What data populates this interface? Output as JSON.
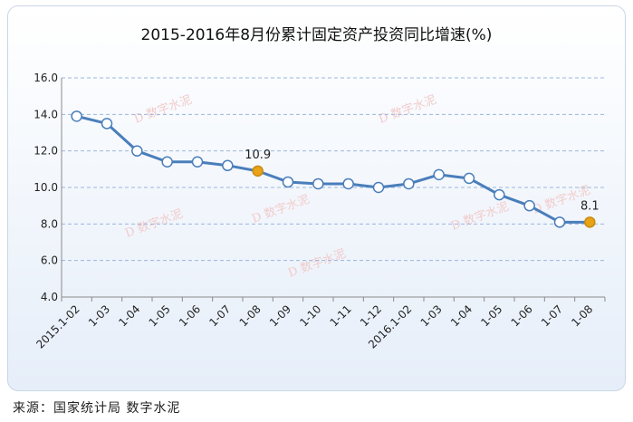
{
  "source": "来源：国家统计局 数字水泥",
  "chart_data": {
    "type": "line",
    "title": "2015-2016年8月份累计固定资产投资同比增速(%)",
    "xlabel": "",
    "ylabel": "",
    "ylim": [
      4.0,
      16.0
    ],
    "yticks": [
      "4.0",
      "6.0",
      "8.0",
      "10.0",
      "12.0",
      "14.0",
      "16.0"
    ],
    "grid": "horizontal dashed",
    "categories": [
      "2015.1-02",
      "1-03",
      "1-04",
      "1-05",
      "1-06",
      "1-07",
      "1-08",
      "1-09",
      "1-10",
      "1-11",
      "1-12",
      "2016.1-02",
      "1-03",
      "1-04",
      "1-05",
      "1-06",
      "1-07",
      "1-08"
    ],
    "series": [
      {
        "values": [
          13.9,
          13.5,
          12.0,
          11.4,
          11.4,
          11.2,
          10.9,
          10.3,
          10.2,
          10.2,
          10.0,
          10.2,
          10.7,
          10.5,
          9.6,
          9.0,
          8.1,
          8.1
        ],
        "color": "#4a7ebb",
        "marker_fill": "#ffffff",
        "highlight_fill": "#e8a317"
      }
    ],
    "highlights": [
      6,
      17
    ],
    "data_labels": [
      {
        "index": 6,
        "text": "10.9"
      },
      {
        "index": 17,
        "text": "8.1"
      }
    ],
    "watermark": "数字水泥"
  }
}
